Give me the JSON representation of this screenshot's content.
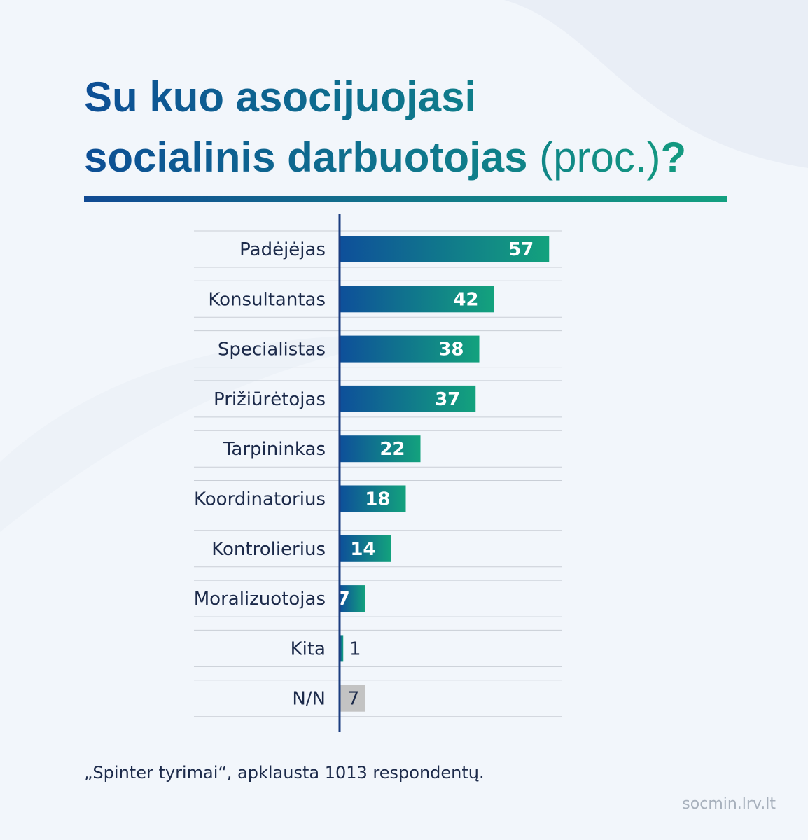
{
  "header": {
    "title_line1": "Su kuo asocijuojasi",
    "title_line2": "socialinis darbuotojas",
    "title_unit": "(proc.)",
    "title_mark": "?"
  },
  "colors": {
    "bar_start": "#0e4f9a",
    "bar_end": "#13a27d",
    "na_bar": "#c3c3c3",
    "axis": "#1c3d80",
    "text": "#1c2a4a"
  },
  "chart_data": {
    "type": "bar",
    "orientation": "horizontal",
    "categories": [
      "Padėjėjas",
      "Konsultantas",
      "Specialistas",
      "Prižiūrėtojas",
      "Tarpininkas",
      "Koordinatorius",
      "Kontrolierius",
      "Moralizuotojas",
      "Kita",
      "N/N"
    ],
    "values": [
      57,
      42,
      38,
      37,
      22,
      18,
      14,
      7,
      1,
      7
    ],
    "value_labels": [
      "57",
      "42",
      "38",
      "37",
      "22",
      "18",
      "14",
      "7",
      "1",
      "7"
    ],
    "unit": "proc.",
    "grid": true,
    "legend": "none"
  },
  "footer": {
    "source": "„Spinter tyrimai“, apklausta 1013 respondentų.",
    "site": "socmin.lrv.lt"
  }
}
